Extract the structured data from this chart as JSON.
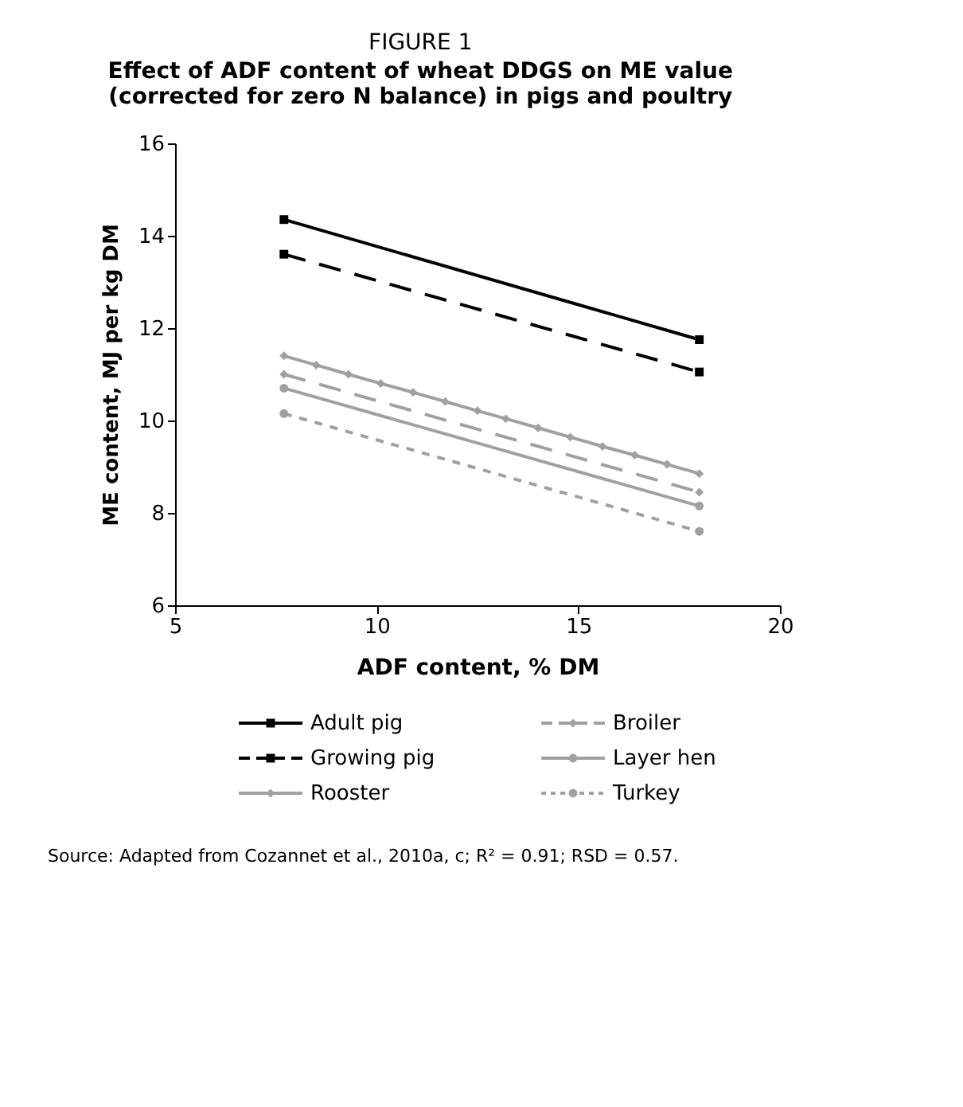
{
  "chart_data": {
    "type": "line",
    "title": "FIGURE 1",
    "subtitle": "Effect of ADF content of wheat DDGS on ME value (corrected for zero N balance) in pigs and poultry",
    "xlabel": "ADF content, % DM",
    "ylabel": "ME content, MJ per kg DM",
    "xlim": [
      5,
      20
    ],
    "xticks": [
      5,
      10,
      15,
      20
    ],
    "ylim": [
      6,
      16
    ],
    "yticks": [
      6,
      8,
      10,
      12,
      14,
      16
    ],
    "grid": false,
    "legend": "bottom",
    "series": [
      {
        "name": "Adult pig",
        "color": "#000000",
        "marker": "square",
        "line_style": "solid",
        "x": [
          7.7,
          18.0
        ],
        "values": [
          14.35,
          11.75
        ]
      },
      {
        "name": "Broiler",
        "color": "#a0a0a0",
        "marker": "diamond",
        "line_style": "dashed",
        "x": [
          7.7,
          18.0
        ],
        "values": [
          11.0,
          8.45
        ]
      },
      {
        "name": "Growing pig",
        "color": "#000000",
        "marker": "square",
        "line_style": "dashed",
        "x": [
          7.7,
          18.0
        ],
        "values": [
          13.6,
          11.05
        ]
      },
      {
        "name": "Layer hen",
        "color": "#a0a0a0",
        "marker": "circle",
        "line_style": "solid",
        "x": [
          7.7,
          18.0
        ],
        "values": [
          10.7,
          8.15
        ]
      },
      {
        "name": "Rooster",
        "color": "#a0a0a0",
        "marker": "diamond",
        "line_style": "solid",
        "x": [
          7.7,
          8.5,
          9.3,
          10.1,
          10.9,
          11.7,
          12.5,
          13.2,
          14.0,
          14.8,
          15.6,
          16.4,
          17.2,
          18.0
        ],
        "values": [
          11.4,
          11.2,
          11.0,
          10.8,
          10.61,
          10.41,
          10.21,
          10.04,
          9.84,
          9.64,
          9.44,
          9.25,
          9.05,
          8.85
        ]
      },
      {
        "name": "Turkey",
        "color": "#a0a0a0",
        "marker": "circle",
        "line_style": "dotted",
        "x": [
          7.7,
          18.0
        ],
        "values": [
          10.15,
          7.6
        ]
      }
    ],
    "annotations": [
      "Source: Adapted from Cozannet et al., 2010a, c; R² = 0.91; RSD = 0.57."
    ]
  }
}
